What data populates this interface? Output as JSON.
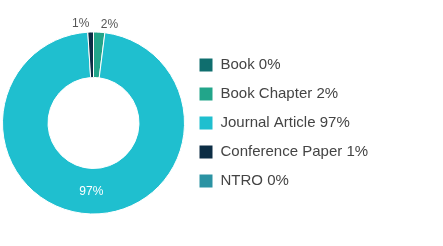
{
  "chart_data": {
    "type": "doughnut",
    "categories": [
      "Book 0%",
      "Book Chapter 2%",
      "Journal Article 97%",
      "Conference Paper 1%",
      "NTRO 0%"
    ],
    "values": [
      0,
      2,
      97,
      1,
      0
    ],
    "value_labels": [
      null,
      "2%",
      "97%",
      "1%",
      null
    ],
    "colors": [
      "#0f6e6e",
      "#22a58a",
      "#1fbfcf",
      "#0c2d44",
      "#2b93a3"
    ],
    "legend": "right",
    "data_labels": true
  }
}
